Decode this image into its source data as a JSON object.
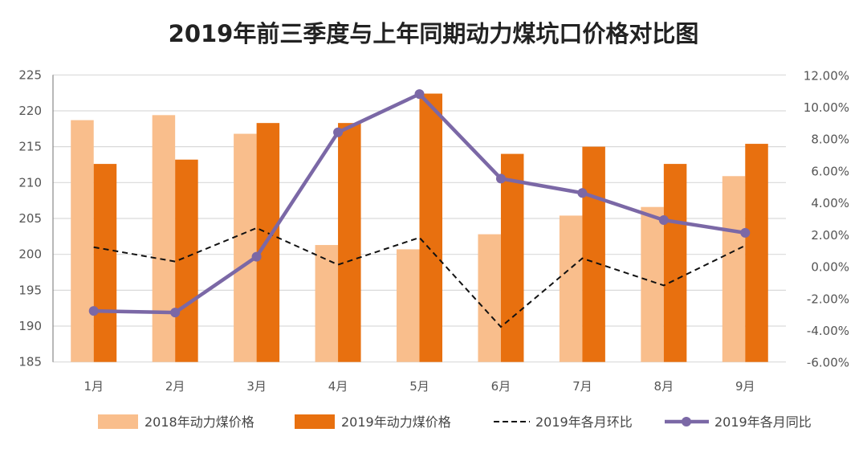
{
  "chart_data": {
    "type": "bar",
    "title": "2019年前三季度与上年同期动力煤坑口价格对比图",
    "categories": [
      "1月",
      "2月",
      "3月",
      "4月",
      "5月",
      "6月",
      "7月",
      "8月",
      "9月"
    ],
    "y_left": {
      "range": [
        185,
        225
      ],
      "step": 5,
      "ticks": [
        "225",
        "220",
        "215",
        "210",
        "205",
        "200",
        "195",
        "190",
        "185"
      ]
    },
    "y_right": {
      "range": [
        -6,
        12
      ],
      "step": 2,
      "unit": "%",
      "ticks": [
        "12.00%",
        "10.00%",
        "8.00%",
        "6.00%",
        "4.00%",
        "2.00%",
        "0.00%",
        "-2.00%",
        "-4.00%",
        "-6.00%"
      ]
    },
    "grid": true,
    "legend_position": "bottom",
    "series": [
      {
        "name": "2018年动力煤价格",
        "type": "bar",
        "axis": "left",
        "color": "#F9BE8C",
        "values": [
          218.7,
          219.4,
          216.8,
          201.3,
          200.7,
          202.8,
          205.4,
          206.6,
          210.9
        ]
      },
      {
        "name": "2019年动力煤价格",
        "type": "bar",
        "axis": "left",
        "color": "#E8700F",
        "values": [
          212.6,
          213.2,
          218.3,
          218.3,
          222.4,
          214.0,
          215.0,
          212.6,
          215.4
        ]
      },
      {
        "name": "2019年各月环比",
        "type": "line",
        "style": "dashed",
        "axis": "right",
        "color": "#111111",
        "values": [
          1.2,
          0.3,
          2.4,
          0.1,
          1.8,
          -3.8,
          0.5,
          -1.2,
          1.3
        ]
      },
      {
        "name": "2019年各月同比",
        "type": "line",
        "marker": "circle",
        "axis": "right",
        "color": "#7B68A6",
        "values": [
          -2.8,
          -2.9,
          0.6,
          8.4,
          10.8,
          5.5,
          4.6,
          2.9,
          2.1
        ]
      }
    ]
  }
}
